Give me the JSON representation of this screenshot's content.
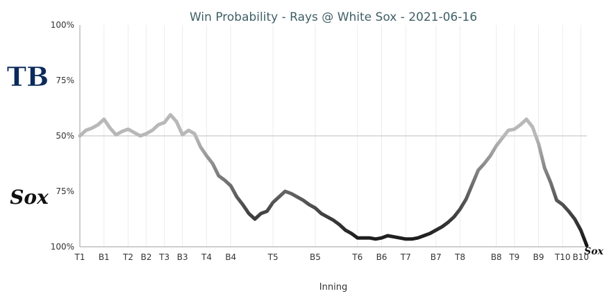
{
  "chart_data": {
    "type": "line",
    "title": "Win Probability - Rays @ White Sox - 2021-06-16",
    "xlabel": "Inning",
    "ylabel": "",
    "y_tick_labels": [
      "100%",
      "75%",
      "50%",
      "75%",
      "100%"
    ],
    "teams": {
      "away": "TB",
      "home": "Sox"
    },
    "colors": {
      "away_line": "#b8b8b8",
      "home_line": "#111111",
      "title": "#3f5f66",
      "away_logo": "#0b2a5b"
    },
    "ylim": [
      -1,
      1
    ],
    "x_ticks": [
      "T1",
      "B1",
      "T2",
      "B2",
      "T3",
      "B3",
      "T4",
      "B4",
      "T5",
      "B5",
      "T6",
      "B6",
      "T7",
      "B7",
      "T8",
      "B8",
      "T9",
      "B9",
      "T10",
      "B10"
    ],
    "x_tick_pos": [
      0,
      1.0,
      2.0,
      2.75,
      3.5,
      4.25,
      5.25,
      6.25,
      8.0,
      9.75,
      11.5,
      12.5,
      13.5,
      14.75,
      15.75,
      17.25,
      18.0,
      19.0,
      20.0,
      20.75
    ],
    "series": [
      {
        "x": [
          0,
          0.25,
          0.5,
          0.75,
          1.0,
          1.25,
          1.5,
          1.75,
          2.0,
          2.25,
          2.5,
          2.75,
          3.0,
          3.25,
          3.5,
          3.75,
          4.0,
          4.25,
          4.5,
          4.75,
          5.0,
          5.25,
          5.5,
          5.75,
          6.0,
          6.25,
          6.5,
          6.75,
          7.0,
          7.25,
          7.5,
          7.75,
          8.0,
          8.25,
          8.5,
          8.75,
          9.0,
          9.25,
          9.5,
          9.75,
          10.0,
          10.25,
          10.5,
          10.75,
          11.0,
          11.25,
          11.5,
          11.75,
          12.0,
          12.25,
          12.5,
          12.75,
          13.0,
          13.25,
          13.5,
          13.75,
          14.0,
          14.25,
          14.5,
          14.75,
          15.0,
          15.25,
          15.5,
          15.75,
          16.0,
          16.25,
          16.5,
          16.75,
          17.0,
          17.25,
          17.5,
          17.75,
          18.0,
          18.25,
          18.5,
          18.75,
          19.0,
          19.25,
          19.5,
          19.75,
          20.0,
          20.25,
          20.5,
          20.75,
          21.0
        ],
        "values": [
          0.0,
          0.05,
          0.07,
          0.1,
          0.15,
          0.07,
          0.01,
          0.04,
          0.06,
          0.03,
          0.0,
          0.02,
          0.05,
          0.1,
          0.12,
          0.19,
          0.13,
          0.01,
          0.05,
          0.02,
          -0.1,
          -0.18,
          -0.25,
          -0.36,
          -0.4,
          -0.45,
          -0.55,
          -0.62,
          -0.7,
          -0.75,
          -0.7,
          -0.68,
          -0.6,
          -0.55,
          -0.5,
          -0.52,
          -0.55,
          -0.58,
          -0.62,
          -0.65,
          -0.7,
          -0.73,
          -0.76,
          -0.8,
          -0.85,
          -0.88,
          -0.92,
          -0.92,
          -0.92,
          -0.93,
          -0.92,
          -0.9,
          -0.91,
          -0.92,
          -0.93,
          -0.93,
          -0.92,
          -0.9,
          -0.88,
          -0.85,
          -0.82,
          -0.78,
          -0.73,
          -0.66,
          -0.57,
          -0.44,
          -0.31,
          -0.25,
          -0.18,
          -0.09,
          -0.02,
          0.05,
          0.06,
          0.1,
          0.15,
          0.08,
          -0.07,
          -0.29,
          -0.42,
          -0.58,
          -0.62,
          -0.68,
          -0.75,
          -0.85,
          -0.99
        ]
      }
    ],
    "grid": true,
    "legend": "none"
  }
}
